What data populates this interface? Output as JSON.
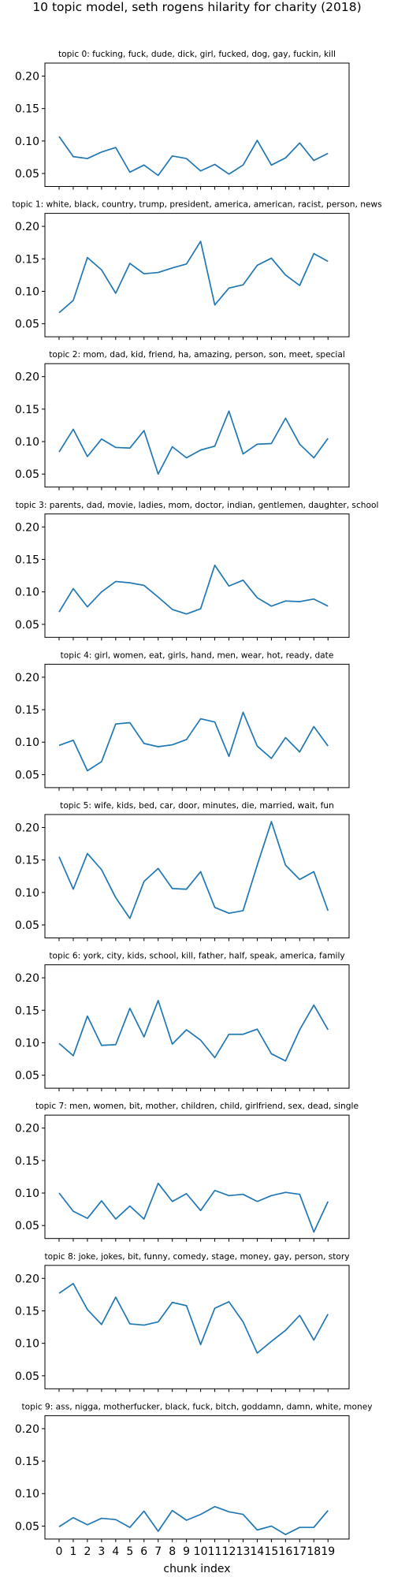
{
  "title": "10 topic model, seth rogens hilarity for charity (2018)",
  "xlabel": "chunk index",
  "colors": {
    "line": "#1f77b4"
  },
  "chart_data": {
    "type": "line",
    "grid": false,
    "x": [
      0,
      1,
      2,
      3,
      4,
      5,
      6,
      7,
      8,
      9,
      10,
      11,
      12,
      13,
      14,
      15,
      16,
      17,
      18,
      19
    ],
    "xticks": [
      "0",
      "1",
      "2",
      "3",
      "4",
      "5",
      "6",
      "7",
      "8",
      "9",
      "10",
      "11",
      "12",
      "13",
      "14",
      "15",
      "16",
      "17",
      "18",
      "19"
    ],
    "ylim": [
      0.03,
      0.22
    ],
    "yticks": [
      "0.05",
      "0.10",
      "0.15",
      "0.20"
    ],
    "ytick_values": [
      0.05,
      0.1,
      0.15,
      0.2
    ],
    "panels": [
      {
        "title": "topic 0: fucking, fuck, dude, dick, girl, fucked, dog, gay, fuckin, kill",
        "values": [
          0.107,
          0.076,
          0.073,
          0.083,
          0.09,
          0.052,
          0.063,
          0.047,
          0.077,
          0.073,
          0.054,
          0.064,
          0.049,
          0.063,
          0.101,
          0.063,
          0.074,
          0.097,
          0.07,
          0.081
        ]
      },
      {
        "title": "topic 1: white, black, country, trump, president, america, american, racist, person, news",
        "values": [
          0.067,
          0.086,
          0.152,
          0.133,
          0.097,
          0.143,
          0.127,
          0.129,
          0.136,
          0.142,
          0.177,
          0.079,
          0.105,
          0.11,
          0.14,
          0.151,
          0.125,
          0.109,
          0.158,
          0.146
        ]
      },
      {
        "title": "topic 2: mom, dad, kid, friend, ha, amazing, person, son, meet, special",
        "values": [
          0.084,
          0.119,
          0.077,
          0.104,
          0.091,
          0.09,
          0.117,
          0.05,
          0.092,
          0.075,
          0.087,
          0.093,
          0.147,
          0.081,
          0.096,
          0.097,
          0.136,
          0.096,
          0.075,
          0.105
        ]
      },
      {
        "title": "topic 3: parents, dad, movie, ladies, mom, doctor, indian, gentlemen, daughter, school",
        "values": [
          0.069,
          0.105,
          0.077,
          0.1,
          0.116,
          0.114,
          0.11,
          0.092,
          0.073,
          0.066,
          0.074,
          0.141,
          0.109,
          0.118,
          0.091,
          0.078,
          0.086,
          0.085,
          0.089,
          0.078
        ]
      },
      {
        "title": "topic 4: girl, women, eat, girls, hand, men, wear, hot, ready, date",
        "values": [
          0.095,
          0.103,
          0.056,
          0.07,
          0.128,
          0.13,
          0.098,
          0.093,
          0.096,
          0.104,
          0.136,
          0.131,
          0.078,
          0.146,
          0.094,
          0.075,
          0.107,
          0.085,
          0.124,
          0.094
        ]
      },
      {
        "title": "topic 5: wife, kids, bed, car, door, minutes, die, married, wait, fun",
        "values": [
          0.155,
          0.105,
          0.16,
          0.135,
          0.092,
          0.06,
          0.117,
          0.137,
          0.106,
          0.105,
          0.132,
          0.077,
          0.068,
          0.072,
          0.142,
          0.209,
          0.142,
          0.12,
          0.132,
          0.072
        ]
      },
      {
        "title": "topic 6: york, city, kids, school, kill, father, half, speak, america, family",
        "values": [
          0.099,
          0.08,
          0.141,
          0.096,
          0.097,
          0.153,
          0.109,
          0.165,
          0.098,
          0.12,
          0.104,
          0.077,
          0.113,
          0.113,
          0.121,
          0.083,
          0.072,
          0.12,
          0.158,
          0.12
        ]
      },
      {
        "title": "topic 7: men, women, bit, mother, children, child, girlfriend, sex, dead, single",
        "values": [
          0.1,
          0.072,
          0.061,
          0.088,
          0.06,
          0.08,
          0.06,
          0.115,
          0.087,
          0.099,
          0.073,
          0.104,
          0.096,
          0.098,
          0.087,
          0.096,
          0.101,
          0.098,
          0.04,
          0.087
        ]
      },
      {
        "title": "topic 8: joke, jokes, bit, funny, comedy, stage, money, gay, person, story",
        "values": [
          0.177,
          0.192,
          0.152,
          0.129,
          0.171,
          0.13,
          0.128,
          0.133,
          0.163,
          0.158,
          0.098,
          0.154,
          0.164,
          0.133,
          0.085,
          0.103,
          0.12,
          0.143,
          0.105,
          0.145
        ]
      },
      {
        "title": "topic 9: ass, nigga, motherfucker, black, fuck, bitch, goddamn, damn, white, money",
        "values": [
          0.049,
          0.063,
          0.052,
          0.062,
          0.06,
          0.048,
          0.073,
          0.042,
          0.074,
          0.059,
          0.068,
          0.08,
          0.072,
          0.068,
          0.044,
          0.05,
          0.037,
          0.048,
          0.048,
          0.074
        ]
      }
    ]
  }
}
